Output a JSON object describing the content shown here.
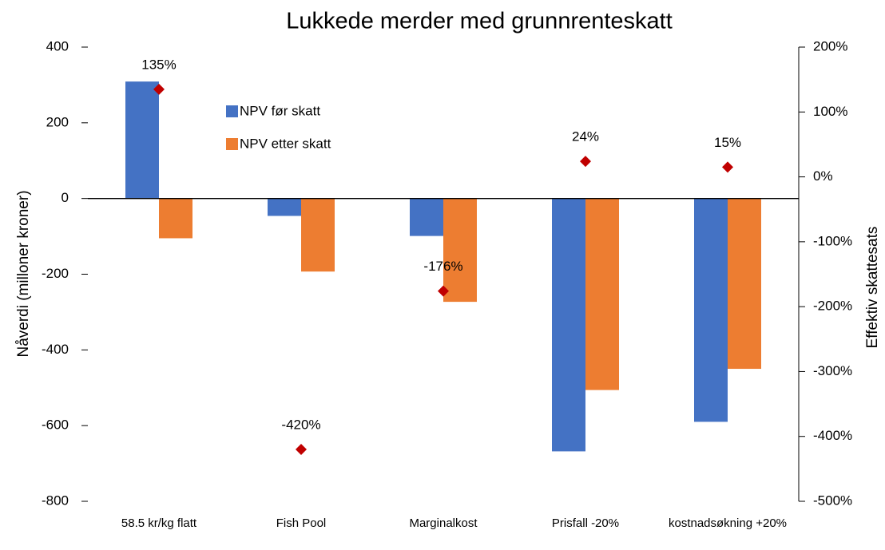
{
  "chart_data": {
    "type": "bar",
    "title": "Lukkede merder med grunnrenteskatt",
    "y_label": "Nåverdi (milloner kroner)",
    "y2_label": "Effektiv skattesats",
    "categories": [
      "58.5 kr/kg flatt",
      "Fish Pool",
      "Marginalkost",
      "Prisfall -20%",
      "kostnadsøkning +20%"
    ],
    "series": [
      {
        "name": "NPV før skatt",
        "color": "#4472c4",
        "values": [
          309,
          -46,
          -99,
          -668,
          -590
        ]
      },
      {
        "name": "NPV etter skatt",
        "color": "#ed7d31",
        "values": [
          -105,
          -193,
          -273,
          -506,
          -450
        ]
      },
      {
        "type": "scatter",
        "axis": "y2",
        "color": "#c00000",
        "values": [
          135,
          -420,
          -176,
          24,
          15
        ],
        "value_labels": [
          "135%",
          "-420%",
          "-176%",
          "24%",
          "15%"
        ]
      }
    ],
    "ylim": [
      -800,
      400
    ],
    "yticks": [
      -800,
      -600,
      -400,
      -200,
      0,
      200,
      400
    ],
    "y2lim": [
      -500,
      200
    ],
    "y2ticks": [
      {
        "value": -500,
        "label": "-500%"
      },
      {
        "value": -400,
        "label": "-400%"
      },
      {
        "value": -300,
        "label": "-300%"
      },
      {
        "value": -200,
        "label": "-200%"
      },
      {
        "value": -100,
        "label": "-100%"
      },
      {
        "value": 0,
        "label": "0%"
      },
      {
        "value": 100,
        "label": "100%"
      },
      {
        "value": 200,
        "label": "200%"
      }
    ],
    "legend": "upper left"
  }
}
